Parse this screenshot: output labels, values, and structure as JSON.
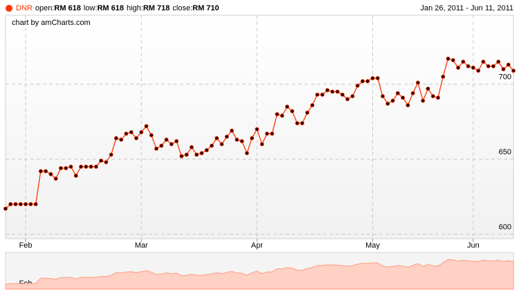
{
  "chart_data": {
    "type": "line",
    "legend": {
      "name": "DNR",
      "items": [
        {
          "label": "open:",
          "value": "RM 618"
        },
        {
          "label": "low:",
          "value": "RM 618"
        },
        {
          "label": "high:",
          "value": "RM 718"
        },
        {
          "label": "close:",
          "value": "RM 710"
        }
      ]
    },
    "date_range": "Jan 26, 2011 - Jun 11, 2011",
    "credit": "chart by amCharts.com",
    "categories": [
      null,
      null,
      null,
      null,
      "Feb",
      null,
      null,
      null,
      null,
      null,
      null,
      null,
      null,
      null,
      null,
      null,
      null,
      null,
      null,
      null,
      null,
      null,
      null,
      null,
      null,
      null,
      null,
      "Mar",
      null,
      null,
      null,
      null,
      null,
      null,
      null,
      null,
      null,
      null,
      null,
      null,
      null,
      null,
      null,
      null,
      null,
      null,
      null,
      null,
      null,
      null,
      "Apr",
      null,
      null,
      null,
      null,
      null,
      null,
      null,
      null,
      null,
      null,
      null,
      null,
      null,
      null,
      null,
      null,
      null,
      null,
      null,
      null,
      null,
      null,
      "May",
      null,
      null,
      null,
      null,
      null,
      null,
      null,
      null,
      null,
      null,
      null,
      null,
      null,
      null,
      null,
      null,
      null,
      null,
      null,
      "Jun",
      null,
      null,
      null,
      null,
      null,
      null,
      null,
      null
    ],
    "series": [
      {
        "name": "DNR",
        "color": "#ff3300",
        "values": [
          617,
          620,
          620,
          620,
          620,
          620,
          620,
          642,
          642,
          640,
          637,
          644,
          644,
          645,
          639,
          645,
          645,
          645,
          645,
          649,
          648,
          653,
          664,
          663,
          667,
          668,
          664,
          668,
          672,
          666,
          657,
          659,
          663,
          660,
          662,
          652,
          653,
          658,
          653,
          654,
          656,
          659,
          664,
          660,
          665,
          669,
          663,
          662,
          654,
          664,
          670,
          660,
          667,
          667,
          680,
          679,
          685,
          682,
          674,
          674,
          681,
          686,
          693,
          693,
          696,
          695,
          695,
          693,
          690,
          692,
          699,
          702,
          702,
          704,
          704,
          692,
          687,
          689,
          694,
          691,
          686,
          694,
          701,
          689,
          697,
          692,
          691,
          705,
          717,
          716,
          711,
          715,
          712,
          711,
          709,
          715,
          712,
          712,
          715,
          710,
          713,
          709
        ]
      }
    ],
    "ylim": [
      597,
      746
    ],
    "yticks": [
      600,
      650,
      700
    ],
    "grid": true
  }
}
